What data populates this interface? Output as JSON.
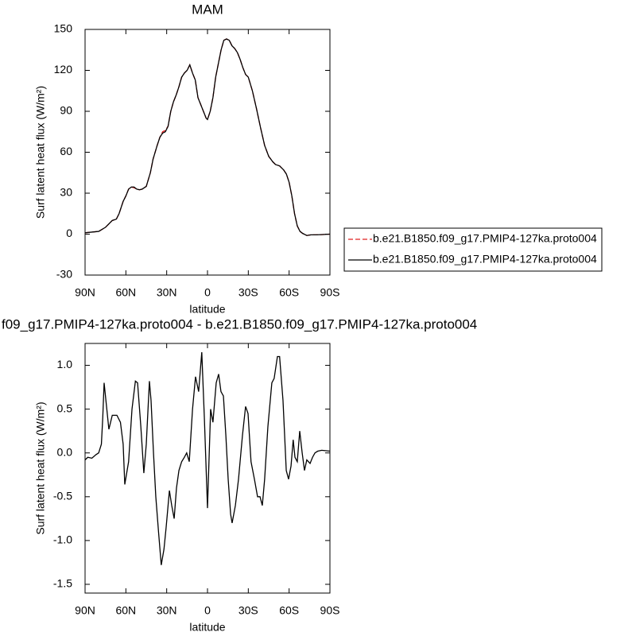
{
  "chart_data": [
    {
      "type": "line",
      "title": "MAM",
      "xlabel": "latitude",
      "ylabel": "Surf latent heat flux (W/m²)",
      "legend": "right",
      "x": [
        90,
        85,
        80,
        75,
        72,
        70,
        67,
        65,
        62,
        60,
        58,
        56,
        54,
        52,
        50,
        48,
        45,
        42,
        40,
        37,
        35,
        33,
        31,
        29,
        27,
        25,
        23,
        21,
        19,
        17,
        15,
        13,
        11,
        9,
        7,
        5,
        3,
        1,
        0,
        -2,
        -4,
        -6,
        -8,
        -10,
        -12,
        -14,
        -16,
        -18,
        -20,
        -22,
        -24,
        -26,
        -28,
        -30,
        -33,
        -36,
        -39,
        -42,
        -45,
        -48,
        -50,
        -53,
        -56,
        -58,
        -60,
        -62,
        -64,
        -66,
        -68,
        -70,
        -73,
        -76,
        -80,
        -85,
        -90
      ],
      "series": [
        {
          "name": "b.e21.B1850.f09_g17.PMIP4-127ka.proto004",
          "color": "#e02020",
          "linestyle": "dashed",
          "values": [
            1,
            1.5,
            2,
            5,
            8,
            10,
            11,
            15,
            24,
            28,
            33,
            34.5,
            34,
            33,
            32.5,
            33,
            35,
            45,
            55,
            65,
            71,
            75,
            76,
            79,
            90,
            97,
            102,
            108,
            115,
            118,
            120,
            124,
            118,
            113,
            100,
            95,
            90,
            85,
            84,
            90,
            100,
            115,
            125,
            135,
            142,
            143,
            142,
            138,
            136,
            133,
            128,
            122,
            117,
            115,
            105,
            92,
            78,
            65,
            57,
            53,
            51,
            50,
            47,
            44,
            38,
            28,
            15,
            6,
            2,
            0.5,
            -1,
            -0.5,
            -0.5,
            -0.3,
            0
          ]
        },
        {
          "name": "b.e21.B1850.f09_g17.PMIP4-127ka.proto004",
          "color": "#000000",
          "linestyle": "solid",
          "values": [
            1,
            1.5,
            2,
            5,
            8,
            10,
            11,
            15,
            24,
            28,
            33,
            34.5,
            34.5,
            33,
            32.5,
            33,
            35,
            45,
            55,
            65,
            71,
            74,
            75,
            79,
            90,
            97,
            102,
            108,
            115,
            118,
            120,
            124,
            118,
            113,
            100,
            95,
            90,
            85,
            84,
            90,
            100,
            115,
            125,
            135,
            142,
            143,
            142,
            138,
            136,
            133,
            128,
            122,
            117,
            115,
            105,
            92,
            78,
            65,
            57,
            53,
            51,
            50,
            47,
            44,
            38,
            28,
            15,
            6,
            2,
            0.5,
            -1,
            -0.5,
            -0.5,
            -0.3,
            0
          ]
        }
      ],
      "xlim": [
        90,
        -90
      ],
      "xticks": [
        {
          "value": 90,
          "label": "90N"
        },
        {
          "value": 60,
          "label": "60N"
        },
        {
          "value": 30,
          "label": "30N"
        },
        0,
        {
          "value": -30,
          "label": "30S"
        },
        {
          "value": -60,
          "label": "60S"
        },
        {
          "value": -90,
          "label": "90S"
        }
      ],
      "ylim": [
        -30,
        150
      ],
      "yticks": [
        -30,
        0,
        30,
        60,
        90,
        120,
        150
      ]
    },
    {
      "type": "line",
      "title": "f09_g17.PMIP4-127ka.proto004 - b.e21.B1850.f09_g17.PMIP4-127ka.proto004",
      "xlabel": "latitude",
      "ylabel": "Surf latent heat flux (W/m²)",
      "x": [
        90,
        88,
        85,
        82,
        80,
        78,
        77,
        76,
        72.5,
        70,
        66.6,
        64,
        62,
        60.8,
        58,
        55.5,
        53,
        51.4,
        49,
        46.8,
        45,
        42.7,
        41.5,
        39.7,
        38,
        36,
        34,
        32,
        30.4,
        28,
        26.3,
        24.5,
        22.8,
        21,
        19,
        17,
        15.3,
        13.4,
        11,
        8.8,
        6.5,
        4.2,
        2.3,
        0,
        -2.3,
        -4,
        -6.4,
        -8.2,
        -9.9,
        -11.7,
        -13.5,
        -15.2,
        -17,
        -18.1,
        -20.5,
        -22.8,
        -25.7,
        -28,
        -29.8,
        -32,
        -34.5,
        -36.8,
        -38.6,
        -40.3,
        -42,
        -44.4,
        -47.3,
        -49,
        -51.4,
        -53,
        -55.5,
        -57.9,
        -59.6,
        -61.4,
        -63,
        -64.3,
        -66,
        -67.8,
        -69.6,
        -71.3,
        -73,
        -75.4,
        -77.2,
        -79,
        -81,
        -84,
        -90
      ],
      "series": [
        {
          "color": "#000000",
          "linestyle": "solid",
          "values": [
            -0.08,
            -0.05,
            -0.06,
            -0.02,
            0,
            0.1,
            0.4,
            0.8,
            0.27,
            0.43,
            0.43,
            0.35,
            0.1,
            -0.36,
            -0.1,
            0.5,
            0.82,
            0.8,
            0.3,
            -0.23,
            0.1,
            0.82,
            0.6,
            0,
            -0.5,
            -0.9,
            -1.28,
            -1.1,
            -0.85,
            -0.43,
            -0.6,
            -0.75,
            -0.4,
            -0.2,
            -0.1,
            -0.05,
            0,
            -0.1,
            0.5,
            0.87,
            0.7,
            1.15,
            0.4,
            -0.63,
            0.5,
            0.35,
            0.8,
            0.9,
            0.7,
            0.65,
            0.2,
            -0.3,
            -0.7,
            -0.8,
            -0.6,
            -0.3,
            0.2,
            0.53,
            0.45,
            -0.1,
            -0.3,
            -0.5,
            -0.5,
            -0.6,
            -0.3,
            0.3,
            0.8,
            0.85,
            1.1,
            1.1,
            0.6,
            -0.2,
            -0.3,
            -0.15,
            0.15,
            -0.05,
            -0.1,
            0.25,
            0,
            -0.2,
            -0.08,
            -0.12,
            -0.05,
            0,
            0.02,
            0.03,
            0.02
          ]
        }
      ],
      "xlim": [
        90,
        -90
      ],
      "xticks": [
        {
          "value": 90,
          "label": "90N"
        },
        {
          "value": 60,
          "label": "60N"
        },
        {
          "value": 30,
          "label": "30N"
        },
        0,
        {
          "value": -30,
          "label": "30S"
        },
        {
          "value": -60,
          "label": "60S"
        },
        {
          "value": -90,
          "label": "90S"
        }
      ],
      "ylim": [
        -1.6,
        1.25
      ],
      "yticks": [
        {
          "value": -1.5,
          "label": "-1.5"
        },
        {
          "value": -1,
          "label": "-1.0"
        },
        -0.5,
        {
          "value": 0,
          "label": "0.0"
        },
        0.5,
        {
          "value": 1,
          "label": "1.0"
        }
      ]
    }
  ]
}
